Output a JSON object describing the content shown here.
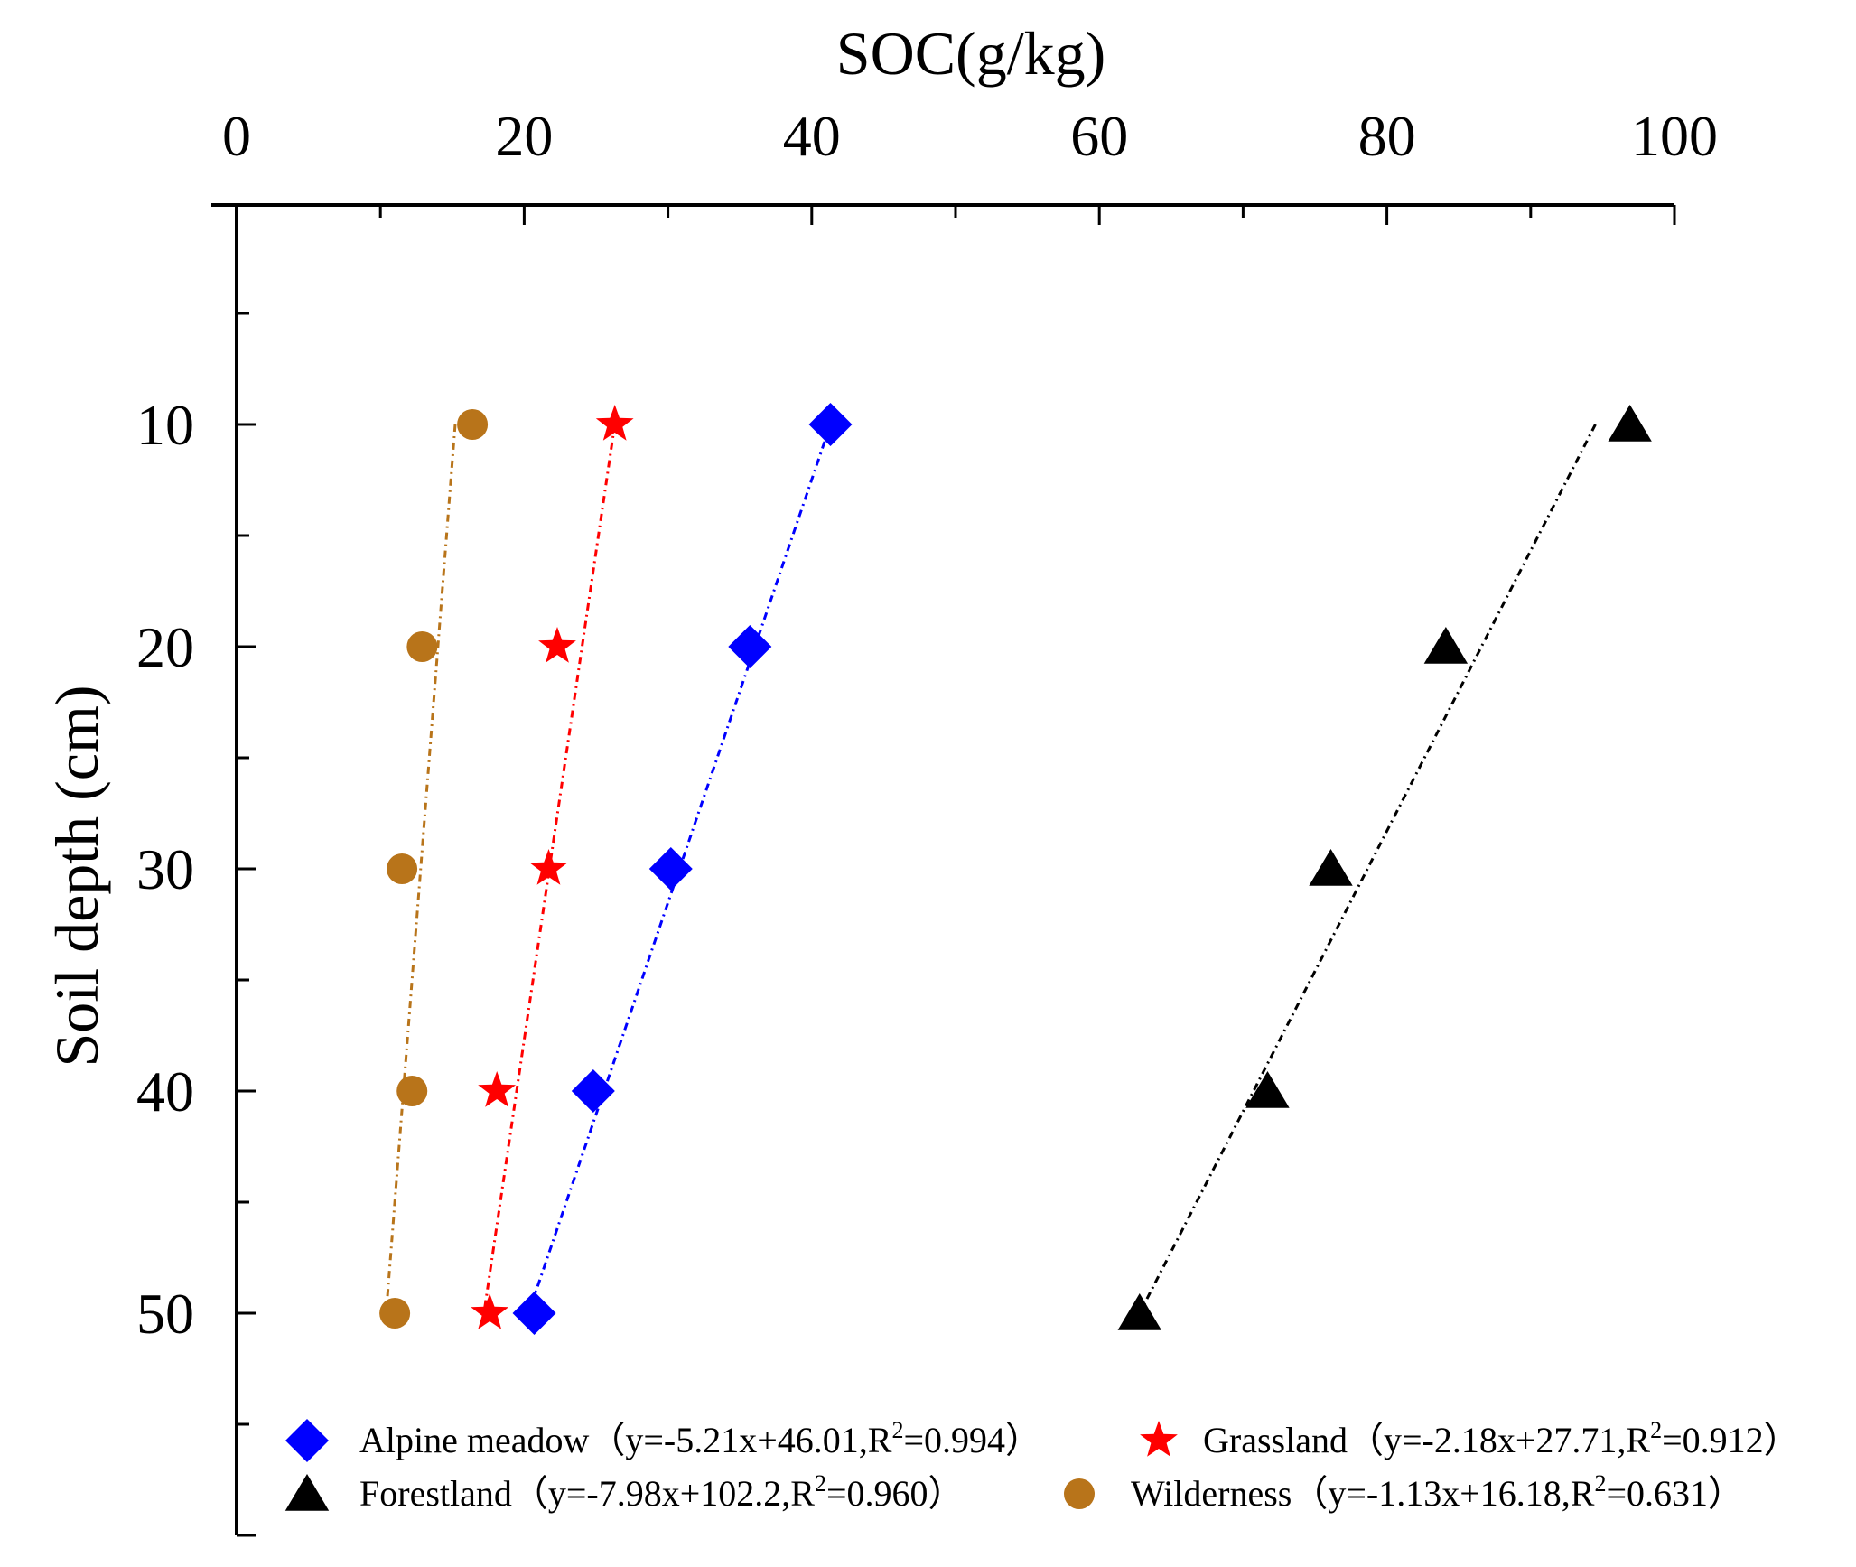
{
  "chart_data": {
    "type": "scatter",
    "title": "",
    "xlabel": "SOC(g/kg)",
    "ylabel": "Soil depth (cm)",
    "x_axis_position": "top",
    "y_axis_inverted": true,
    "xlim": [
      0,
      100
    ],
    "ylim": [
      0,
      60
    ],
    "x_ticks": [
      "0",
      "20",
      "40",
      "60",
      "80",
      "100"
    ],
    "y_ticks": [
      "10",
      "20",
      "30",
      "40",
      "50"
    ],
    "grid": false,
    "legend_position": "bottom",
    "series": [
      {
        "name": "Alpine meadow",
        "equation_prefix": "（y=-5.21x+46.01,R",
        "equation_suffix": "=0.994）",
        "marker": "diamond",
        "color": "#0000ff",
        "depth": [
          10,
          20,
          30,
          40,
          50
        ],
        "soc": [
          41.3,
          35.7,
          30.2,
          24.8,
          20.7
        ],
        "fit_line": {
          "soc": [
            41.3,
            20.3
          ],
          "depth": [
            10,
            50
          ]
        }
      },
      {
        "name": "Grassland",
        "equation_prefix": "（y=-2.18x+27.71,R",
        "equation_suffix": "=0.912）",
        "marker": "star",
        "color": "#ff0000",
        "depth": [
          10,
          20,
          30,
          40,
          50
        ],
        "soc": [
          26.3,
          22.3,
          21.7,
          18.1,
          17.6
        ],
        "fit_line": {
          "soc": [
            26.3,
            17.2
          ],
          "depth": [
            10,
            50
          ]
        }
      },
      {
        "name": "Forestland",
        "equation_prefix": "（y=-7.98x+102.2,R",
        "equation_suffix": "=0.960）",
        "marker": "triangle",
        "color": "#000000",
        "depth": [
          10,
          20,
          30,
          40,
          50
        ],
        "soc": [
          96.9,
          84.1,
          76.1,
          71.7,
          62.8
        ],
        "fit_line": {
          "soc": [
            94.5,
            62.8
          ],
          "depth": [
            10,
            50
          ]
        }
      },
      {
        "name": "Wilderness",
        "equation_prefix": "（y=-1.13x+16.18,R",
        "equation_suffix": "=0.631）",
        "marker": "circle",
        "color": "#b8741a",
        "depth": [
          10,
          20,
          30,
          40,
          50
        ],
        "soc": [
          16.4,
          12.9,
          11.5,
          12.2,
          11.0
        ],
        "fit_line": {
          "soc": [
            15.2,
            10.4
          ],
          "depth": [
            10,
            50
          ]
        }
      }
    ],
    "r_superscript": "2"
  }
}
